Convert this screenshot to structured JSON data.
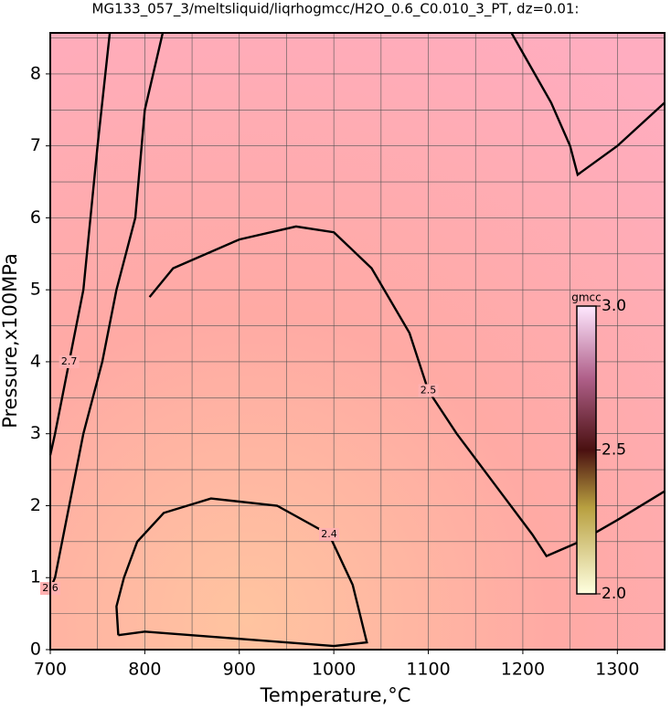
{
  "chart_data": {
    "type": "contour",
    "title": "MG133_057_3/meltsliquid/liqrhogmcc/H2O_0.6_C0.010_3_PT, dz=0.01:",
    "xlabel": "Temperature,°C",
    "ylabel": "Pressure,x100MPa",
    "xlim": [
      700,
      1350
    ],
    "ylim": [
      0,
      8.57
    ],
    "xticks": [
      700,
      800,
      900,
      1000,
      1100,
      1200,
      1300
    ],
    "yticks": [
      0,
      1,
      2,
      3,
      4,
      5,
      6,
      7,
      8
    ],
    "xgrid": [
      750,
      800,
      850,
      900,
      950,
      1000,
      1050,
      1100,
      1150,
      1200,
      1250,
      1300
    ],
    "ygrid": [
      0.5,
      1,
      1.5,
      2,
      2.5,
      3,
      3.5,
      4,
      4.5,
      5,
      5.5,
      6,
      6.5,
      7,
      7.5,
      8,
      8.5
    ],
    "series": [
      {
        "name": "2.4",
        "x": [
          772,
          770,
          778,
          792,
          820,
          870,
          940,
          995,
          1020,
          1035,
          1000,
          900,
          800,
          772
        ],
        "y": [
          0.2,
          0.6,
          1.0,
          1.5,
          1.9,
          2.1,
          2.0,
          1.6,
          0.9,
          0.1,
          0.05,
          0.15,
          0.25,
          0.2
        ]
      },
      {
        "name": "2.5",
        "x": [
          805,
          830,
          900,
          960,
          1000,
          1040,
          1080,
          1100,
          1130,
          1170,
          1210,
          1225,
          1260,
          1300,
          1350
        ],
        "y": [
          4.9,
          5.3,
          5.7,
          5.88,
          5.8,
          5.3,
          4.4,
          3.6,
          3.0,
          2.3,
          1.6,
          1.3,
          1.5,
          1.8,
          2.2
        ]
      },
      {
        "name": "2.6",
        "x": [
          819,
          800,
          790,
          770,
          755,
          735,
          720,
          705,
          700,
          null,
          1188,
          1230,
          1250,
          1258,
          1300,
          1350
        ],
        "y": [
          8.57,
          7.5,
          6.0,
          5.0,
          4.0,
          3.0,
          2.0,
          1.0,
          0.85,
          null,
          8.57,
          7.6,
          7.0,
          6.6,
          7.0,
          7.6
        ]
      },
      {
        "name": "2.7",
        "x": [
          763,
          750,
          735,
          720,
          705,
          700
        ],
        "y": [
          8.57,
          7.0,
          5.0,
          4.0,
          3.0,
          2.7
        ]
      }
    ],
    "colorbar": {
      "label": "gmcc",
      "lim": [
        2.0,
        3.0
      ],
      "ticks": [
        {
          "value": 2.0,
          "label": "2.0"
        },
        {
          "value": 2.5,
          "label": "2.5"
        },
        {
          "value": 3.0,
          "label": "3.0"
        }
      ]
    }
  }
}
